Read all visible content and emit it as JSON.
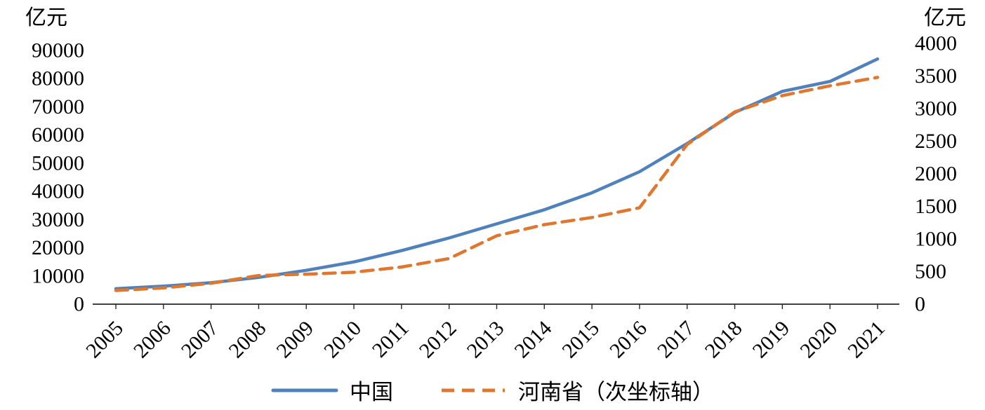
{
  "chart_data": {
    "type": "line",
    "title": "",
    "gridlines": false,
    "legend_position": "bottom",
    "categories": [
      "2005",
      "2006",
      "2007",
      "2008",
      "2009",
      "2010",
      "2011",
      "2012",
      "2013",
      "2014",
      "2015",
      "2016",
      "2017",
      "2018",
      "2019",
      "2020",
      "2021"
    ],
    "left_axis": {
      "title": "亿元",
      "min": 0,
      "max": 90000,
      "tick_interval": 10000
    },
    "right_axis": {
      "title": "亿元",
      "min": 0,
      "max": 4000,
      "tick_interval": 500
    },
    "series": [
      {
        "name": "中国",
        "axis": "left",
        "color": "#4F81BD",
        "line_style": "solid",
        "values": [
          5500,
          6400,
          7600,
          9500,
          12000,
          15000,
          19000,
          23500,
          28500,
          33500,
          39500,
          47000,
          57000,
          68000,
          75500,
          79000,
          87000
        ]
      },
      {
        "name": "河南省（次坐标轴）",
        "axis": "right",
        "color": "#E0772F",
        "line_style": "dashed",
        "values": [
          210,
          250,
          320,
          440,
          460,
          490,
          570,
          700,
          1050,
          1220,
          1330,
          1480,
          2450,
          2950,
          3200,
          3350,
          3480
        ]
      }
    ],
    "axis_line_color": "#262626"
  }
}
